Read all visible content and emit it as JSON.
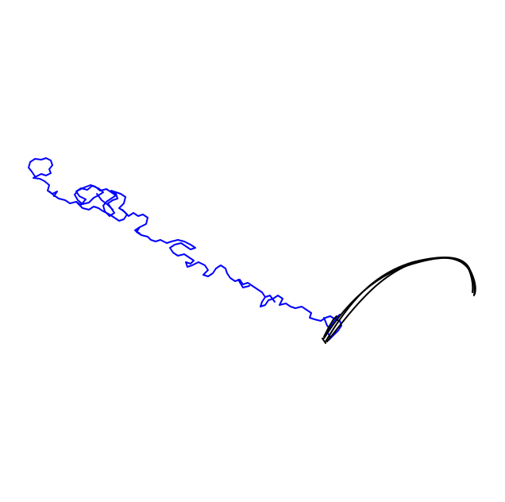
{
  "colors": {
    "background": "#ffffff",
    "wandering_path": "#0000ff",
    "arc_path": "#000000"
  },
  "paths": [
    {
      "name": "wandering-path",
      "color": "#0000ff"
    },
    {
      "name": "arc-path",
      "color": "#000000"
    }
  ]
}
